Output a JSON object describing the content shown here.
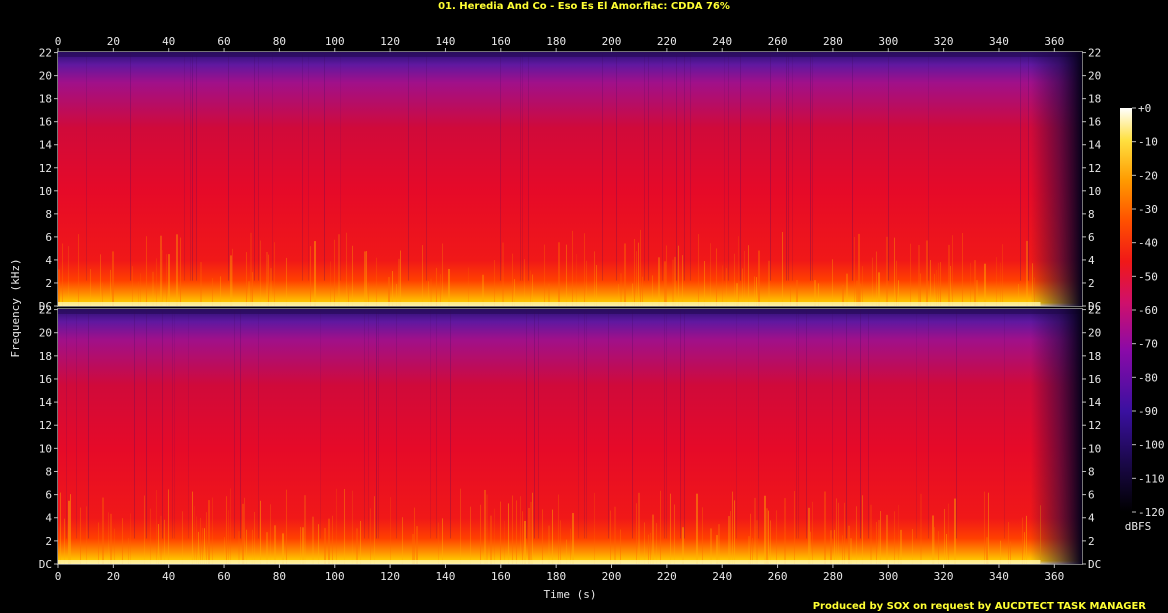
{
  "title": "01. Heredia And Co - Eso Es El Amor.flac: CDDA 76%",
  "footer": "Produced by SOX on request by AUCDTECT TASK MANAGER",
  "chart_data": {
    "type": "heatmap",
    "title": "01. Heredia And Co - Eso Es El Amor.flac: CDDA 76%",
    "xlabel": "Time (s)",
    "ylabel": "Frequency (kHz)",
    "xlim": [
      0,
      370
    ],
    "ylim": [
      0,
      22.05
    ],
    "x_ticks": [
      "0",
      "20",
      "40",
      "60",
      "80",
      "100",
      "120",
      "140",
      "160",
      "180",
      "200",
      "220",
      "240",
      "260",
      "280",
      "300",
      "320",
      "340",
      "360"
    ],
    "y_ticks": [
      "DC",
      "2",
      "4",
      "6",
      "8",
      "10",
      "12",
      "14",
      "16",
      "18",
      "20",
      "22"
    ],
    "channels": [
      "left",
      "right"
    ],
    "colorbar": {
      "label": "dBFS",
      "ticks": [
        "+0",
        "-10",
        "-20",
        "-30",
        "-40",
        "-50",
        "-60",
        "-70",
        "-80",
        "-90",
        "-100",
        "-110",
        "-120"
      ],
      "range": [
        -120,
        0
      ]
    },
    "audio_end_s": 355,
    "colors": {
      "bg": "#000000",
      "title": "#ffff33",
      "text": "#e8e8e8"
    }
  }
}
